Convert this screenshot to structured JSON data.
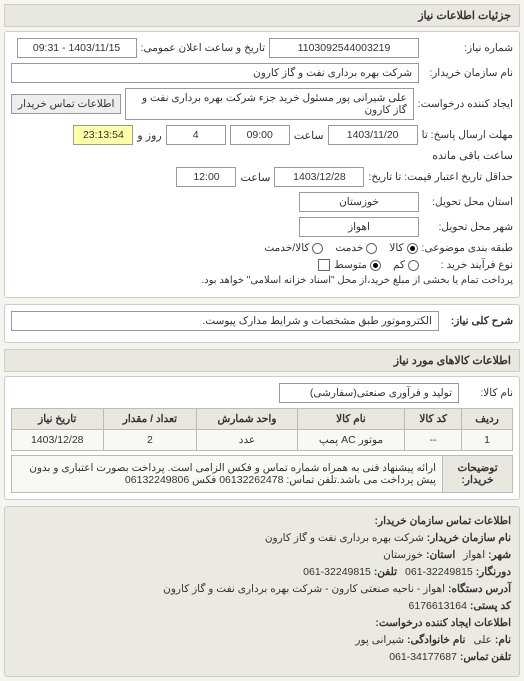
{
  "sections": {
    "details_title": "جزئیات اطلاعات نیاز"
  },
  "header": {
    "number_label": "شماره نیاز:",
    "number_value": "1103092544003219",
    "public_date_label": "تاریخ و ساعت اعلان عمومی:",
    "public_date_value": "1403/11/15 - 09:31",
    "buyer_label": "نام سازمان خریدار:",
    "buyer_value": "شرکت بهره برداری نفت و گاز کارون",
    "requester_label": "ایجاد کننده درخواست:",
    "requester_value": "علی شیرانی پور مسئول خرید جزء شرکت بهره برداری نفت و گاز کارون",
    "contact_label": "اطلاعات تماس خریدار"
  },
  "deadlines": {
    "reply_label": "مهلت ارسال پاسخ: تا",
    "reply_date": "1403/11/20",
    "reply_hour_label": "ساعت",
    "reply_hour": "09:00",
    "days_left": "4",
    "days_left_suffix": "روز و",
    "time_left": "23:13:54",
    "time_left_suffix": "ساعت باقی مانده",
    "credit_until_label": "حداقل تاریخ اعتبار قیمت: تا تاریخ:",
    "credit_date": "1403/12/28",
    "credit_hour_label": "ساعت",
    "credit_hour": "12:00"
  },
  "location": {
    "province_label": "استان محل تحویل:",
    "province_value": "خوزستان",
    "city_label": "شهر محل تحویل:",
    "city_value": "اهواز"
  },
  "classification": {
    "budget_label": "طبقه بندی موضوعی:",
    "budget_opts": {
      "goods": "کالا",
      "service": "خدمت",
      "cash": "کالا/خدمت"
    },
    "budget_selected": "goods",
    "process_label": "نوع فرآیند خرید :",
    "process_opts": {
      "low": "کم",
      "mid": "متوسط"
    },
    "process_selected": "mid",
    "process_note": "پرداخت تمام یا بخشی از مبلغ خرید،از محل \"اسناد خزانه اسلامی\" خواهد بود.",
    "process_checkbox": false
  },
  "summary": {
    "label": "شرح کلی نیاز:",
    "value": "الکتروموتور طبق مشخصات و شرایط مدارک پیوست."
  },
  "items_section": {
    "title": "اطلاعات کالاهای مورد نیاز",
    "category_label": "نام کالا:",
    "category_value": "تولید و فرآوری صنعتی(سفارشی)",
    "table": {
      "cols": [
        "ردیف",
        "کد کالا",
        "نام کالا",
        "واحد شمارش",
        "تعداد / مقدار",
        "تاریخ نیاز"
      ],
      "rows": [
        [
          "1",
          "--",
          "موتور AC پمپ",
          "عدد",
          "2",
          "1403/12/28"
        ]
      ]
    }
  },
  "notes": {
    "label": "توضیحات خریدار:",
    "value": "ارائه پیشنهاد فنی به همراه شماره تماس و فکس الزامی است. پرداخت بصورت اعتباری و بدون پیش پرداخت می باشد.تلفن تماس: 06132262478 فکس 06132249806"
  },
  "footer_info": {
    "title": "اطلاعات تماس سازمان خریدار:",
    "org_label": "نام سازمان خریدار:",
    "org_value": "شرکت بهره برداری نفت و گاز کارون",
    "city_label": "شهر:",
    "city_value": "اهواز",
    "province_label": "استان:",
    "province_value": "خوزستان",
    "fax_label": "دورنگار:",
    "fax_value": "32249815-061",
    "phone_label": "تلفن:",
    "phone_value": "32249815-061",
    "address_label": "آدرس دستگاه:",
    "address_value": "اهواز - ناحیه صنعتی کارون - شرکت بهره برداری نفت و گاز کارون",
    "postal_label": "کد پستی:",
    "postal_value": "6176613164",
    "creator_title": "اطلاعات ایجاد کننده درخواست:",
    "fname_label": "نام:",
    "fname_value": "علی",
    "lname_label": "نام خانوادگی:",
    "lname_value": "شیرانی پور",
    "cphone_label": "تلفن تماس:",
    "cphone_value": "34177687-061"
  }
}
